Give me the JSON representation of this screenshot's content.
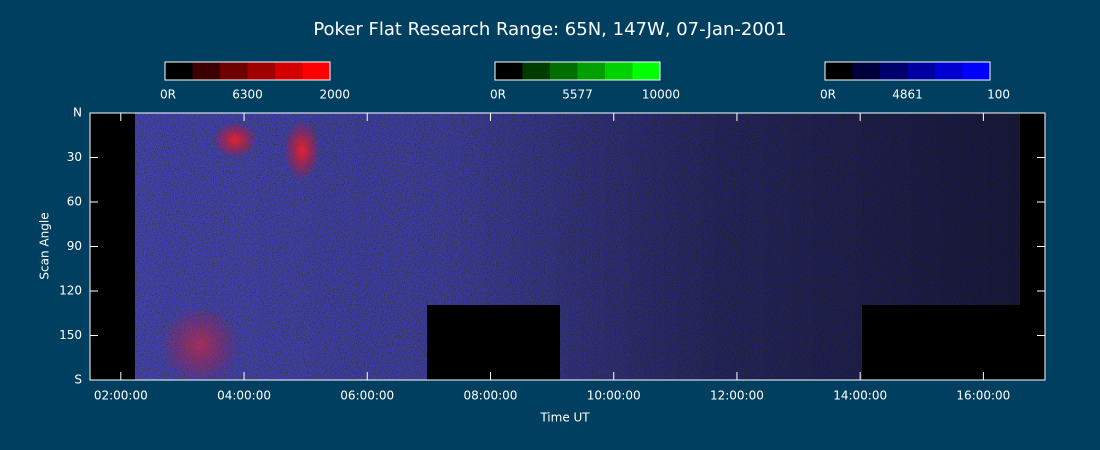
{
  "chart_data": {
    "type": "keogram",
    "title": "Poker Flat Research Range: 65N, 147W, 07-Jan-2001",
    "xlabel": "Time UT",
    "ylabel": "Scan Angle",
    "xlim": [
      1.5,
      17.0
    ],
    "xticks": [
      {
        "value": 2,
        "label": "02:00:00"
      },
      {
        "value": 4,
        "label": "04:00:00"
      },
      {
        "value": 6,
        "label": "06:00:00"
      },
      {
        "value": 8,
        "label": "08:00:00"
      },
      {
        "value": 10,
        "label": "10:00:00"
      },
      {
        "value": 12,
        "label": "12:00:00"
      },
      {
        "value": 14,
        "label": "14:00:00"
      },
      {
        "value": 16,
        "label": "16:00:00"
      }
    ],
    "ylim": [
      0,
      180
    ],
    "yticks": [
      {
        "value": 0,
        "label": "N"
      },
      30,
      60,
      90,
      120,
      150,
      {
        "value": 180,
        "label": "S"
      }
    ],
    "colorbars": [
      {
        "labels": [
          "0R",
          "6300",
          "2000"
        ],
        "colors": [
          "#000000",
          "#3c0000",
          "#6e0000",
          "#a00000",
          "#d20000",
          "#ff0000"
        ]
      },
      {
        "labels": [
          "0R",
          "5577",
          "10000"
        ],
        "colors": [
          "#000000",
          "#003c00",
          "#006e00",
          "#00a000",
          "#00d200",
          "#00ff00"
        ]
      },
      {
        "labels": [
          "0R",
          "4861",
          "100"
        ],
        "colors": [
          "#000000",
          "#00003c",
          "#00006e",
          "#0000a0",
          "#0000d2",
          "#0000ff"
        ]
      }
    ]
  }
}
